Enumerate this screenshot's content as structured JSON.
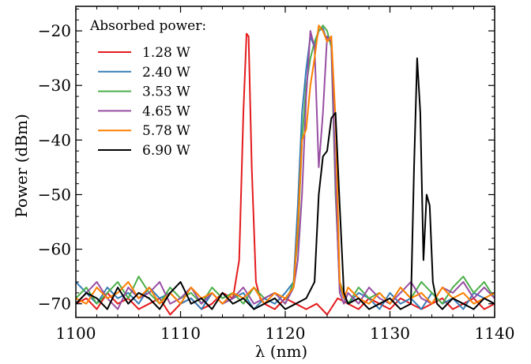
{
  "chart_data": {
    "type": "line",
    "xlabel": "λ (nm)",
    "ylabel": "Power (dBm)",
    "xlim": [
      1100,
      1140
    ],
    "ylim": [
      -72.5,
      -15.5
    ],
    "xticks": [
      1100,
      1110,
      1120,
      1130,
      1140
    ],
    "yticks": [
      -20,
      -30,
      -40,
      -50,
      -60,
      -70
    ],
    "ytick_labels": [
      "−20",
      "−30",
      "−40",
      "−50",
      "−60",
      "−70"
    ],
    "legend_title": "Absorbed power:",
    "legend_position": "top-left",
    "grid": false,
    "series": [
      {
        "name": "1.28 W",
        "color": "#e41a1c",
        "x": [
          1100,
          1101,
          1102,
          1103,
          1104,
          1105,
          1106,
          1107,
          1108,
          1109,
          1110,
          1111,
          1112,
          1113,
          1114,
          1115,
          1115.6,
          1116.0,
          1116.3,
          1116.5,
          1116.8,
          1117.2,
          1117.6,
          1118.0,
          1119,
          1120,
          1121,
          1122,
          1123,
          1124,
          1125,
          1126,
          1127,
          1128,
          1129,
          1130,
          1131,
          1132,
          1133,
          1134,
          1135,
          1136,
          1137,
          1138,
          1139,
          1140
        ],
        "y": [
          -70,
          -69,
          -71,
          -68,
          -70,
          -69,
          -71,
          -70,
          -69,
          -72,
          -70,
          -69,
          -71,
          -70,
          -68,
          -69,
          -62,
          -35,
          -20.5,
          -21,
          -45,
          -66,
          -69,
          -70,
          -71,
          -69,
          -70,
          -71,
          -70,
          -72,
          -69,
          -70,
          -71,
          -69,
          -70,
          -71,
          -69,
          -70,
          -71,
          -70,
          -69,
          -71,
          -70,
          -69,
          -71,
          -70
        ]
      },
      {
        "name": "2.40 W",
        "color": "#377eb8",
        "x": [
          1100,
          1101,
          1102,
          1103,
          1104,
          1105,
          1106,
          1107,
          1108,
          1109,
          1110,
          1111,
          1112,
          1113,
          1114,
          1115,
          1116,
          1117,
          1118,
          1119,
          1120,
          1120.8,
          1121.2,
          1121.6,
          1122.0,
          1122.4,
          1122.8,
          1123.2,
          1123.6,
          1124.0,
          1124.4,
          1124.8,
          1125.2,
          1125.6,
          1126,
          1127,
          1128,
          1129,
          1130,
          1131,
          1132,
          1133,
          1134,
          1135,
          1136,
          1137,
          1138,
          1139,
          1140
        ],
        "y": [
          -66,
          -68,
          -70,
          -67,
          -69,
          -68,
          -70,
          -67,
          -69,
          -68,
          -70,
          -69,
          -71,
          -68,
          -70,
          -69,
          -68,
          -71,
          -69,
          -70,
          -68,
          -66,
          -52,
          -35,
          -27,
          -21,
          -23,
          -20,
          -19.5,
          -22,
          -21,
          -48,
          -67,
          -69,
          -70,
          -68,
          -69,
          -71,
          -68,
          -70,
          -69,
          -71,
          -68,
          -70,
          -69,
          -71,
          -68,
          -69,
          -70
        ]
      },
      {
        "name": "3.53 W",
        "color": "#4daf4a",
        "x": [
          1100,
          1101,
          1102,
          1103,
          1104,
          1105,
          1106,
          1107,
          1108,
          1109,
          1110,
          1111,
          1112,
          1113,
          1114,
          1115,
          1116,
          1117,
          1118,
          1119,
          1120,
          1120.8,
          1121.2,
          1121.6,
          1122.0,
          1122.4,
          1122.8,
          1123.2,
          1123.6,
          1124.0,
          1124.4,
          1124.8,
          1125.2,
          1125.6,
          1126,
          1127,
          1128,
          1129,
          1130,
          1131,
          1132,
          1133,
          1134,
          1135,
          1136,
          1137,
          1138,
          1139,
          1140
        ],
        "y": [
          -69,
          -67,
          -70,
          -68,
          -66,
          -69,
          -65,
          -68,
          -70,
          -67,
          -69,
          -68,
          -70,
          -67,
          -69,
          -68,
          -70,
          -67,
          -69,
          -68,
          -70,
          -66,
          -58,
          -40,
          -30,
          -25,
          -22,
          -20,
          -19,
          -20,
          -23,
          -50,
          -66,
          -68,
          -70,
          -67,
          -69,
          -68,
          -70,
          -67,
          -69,
          -66,
          -68,
          -70,
          -67,
          -65,
          -68,
          -66,
          -69
        ]
      },
      {
        "name": "4.65 W",
        "color": "#984ea3",
        "x": [
          1100,
          1101,
          1102,
          1103,
          1104,
          1105,
          1106,
          1107,
          1108,
          1109,
          1110,
          1111,
          1112,
          1113,
          1114,
          1115,
          1116,
          1117,
          1118,
          1119,
          1120,
          1120.8,
          1121.2,
          1121.6,
          1122.0,
          1122.4,
          1122.8,
          1123.2,
          1123.6,
          1124.0,
          1124.4,
          1124.8,
          1125.2,
          1125.6,
          1126,
          1127,
          1128,
          1129,
          1130,
          1131,
          1132,
          1133,
          1134,
          1135,
          1136,
          1137,
          1138,
          1139,
          1140
        ],
        "y": [
          -70,
          -68,
          -66,
          -69,
          -71,
          -67,
          -69,
          -68,
          -66,
          -70,
          -69,
          -67,
          -70,
          -68,
          -70,
          -69,
          -67,
          -70,
          -69,
          -68,
          -70,
          -67,
          -62,
          -50,
          -32,
          -20,
          -23,
          -45,
          -35,
          -21,
          -22,
          -48,
          -68,
          -70,
          -68,
          -70,
          -67,
          -69,
          -70,
          -68,
          -66,
          -69,
          -70,
          -67,
          -68,
          -66,
          -69,
          -67,
          -69
        ]
      },
      {
        "name": "5.78 W",
        "color": "#ff7f00",
        "x": [
          1100,
          1101,
          1102,
          1103,
          1104,
          1105,
          1106,
          1107,
          1108,
          1109,
          1110,
          1111,
          1112,
          1113,
          1114,
          1115,
          1116,
          1117,
          1118,
          1119,
          1120,
          1120.8,
          1121.2,
          1121.6,
          1122.0,
          1122.4,
          1122.8,
          1123.2,
          1123.6,
          1124.0,
          1124.4,
          1124.8,
          1125.2,
          1125.6,
          1126,
          1127,
          1128,
          1129,
          1130,
          1131,
          1132,
          1133,
          1134,
          1135,
          1136,
          1137,
          1138,
          1139,
          1140
        ],
        "y": [
          -69,
          -70,
          -67,
          -69,
          -68,
          -66,
          -69,
          -67,
          -70,
          -68,
          -70,
          -67,
          -69,
          -68,
          -70,
          -68,
          -69,
          -67,
          -70,
          -68,
          -69,
          -67,
          -56,
          -40,
          -38,
          -30,
          -25,
          -19,
          -20,
          -22,
          -21,
          -36,
          -66,
          -69,
          -67,
          -69,
          -70,
          -68,
          -70,
          -67,
          -69,
          -68,
          -70,
          -67,
          -69,
          -68,
          -70,
          -69,
          -68
        ]
      },
      {
        "name": "6.90 W",
        "color": "#000000",
        "x": [
          1100,
          1101,
          1102,
          1103,
          1104,
          1105,
          1106,
          1107,
          1108,
          1109,
          1110,
          1111,
          1112,
          1113,
          1114,
          1115,
          1116,
          1117,
          1118,
          1119,
          1120,
          1121,
          1122,
          1122.8,
          1123.2,
          1123.6,
          1124.0,
          1124.4,
          1124.8,
          1125.2,
          1125.6,
          1126,
          1127,
          1128,
          1129,
          1130,
          1131,
          1132.0,
          1132.3,
          1132.6,
          1132.9,
          1133.2,
          1133.5,
          1133.8,
          1134.1,
          1134.5,
          1135,
          1136,
          1137,
          1138,
          1139,
          1140
        ],
        "y": [
          -70,
          -68,
          -69,
          -71,
          -67,
          -70,
          -68,
          -69,
          -71,
          -68,
          -66,
          -70,
          -69,
          -71,
          -68,
          -70,
          -69,
          -71,
          -70,
          -69,
          -71,
          -70,
          -69,
          -66,
          -50,
          -43,
          -42,
          -36,
          -35,
          -52,
          -68,
          -70,
          -69,
          -71,
          -70,
          -69,
          -71,
          -70,
          -45,
          -25,
          -35,
          -62,
          -50,
          -52,
          -66,
          -70,
          -71,
          -69,
          -70,
          -71,
          -69,
          -70
        ]
      }
    ]
  }
}
